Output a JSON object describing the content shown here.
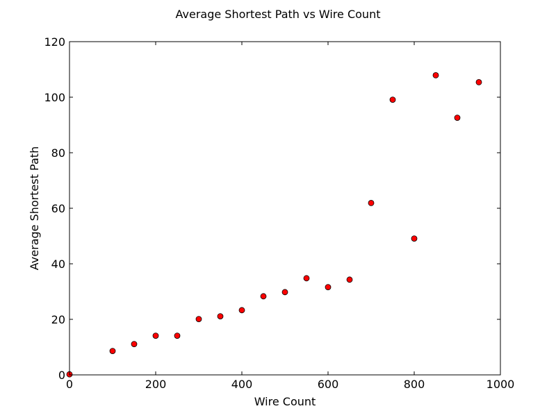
{
  "chart_data": {
    "type": "scatter",
    "title": "Average Shortest Path vs Wire Count",
    "xlabel": "Wire Count",
    "ylabel": "Average Shortest Path",
    "xlim": [
      0,
      1000
    ],
    "ylim": [
      0,
      120
    ],
    "xticks": [
      "0",
      "200",
      "400",
      "600",
      "800",
      "1000"
    ],
    "yticks": [
      "0",
      "20",
      "40",
      "60",
      "80",
      "100",
      "120"
    ],
    "grid": false,
    "marker_color": "#ff0000",
    "marker_edge_color": "#000000",
    "series": [
      {
        "x": [
          0,
          100,
          150,
          200,
          250,
          300,
          350,
          400,
          450,
          500,
          550,
          600,
          650,
          700,
          750,
          800,
          850,
          900,
          950
        ],
        "y": [
          0.2,
          8.6,
          11.1,
          14.1,
          14.1,
          20.1,
          21.1,
          23.3,
          28.3,
          29.8,
          34.8,
          31.6,
          34.3,
          61.9,
          99.1,
          49.1,
          107.9,
          92.6,
          105.4
        ]
      }
    ]
  }
}
